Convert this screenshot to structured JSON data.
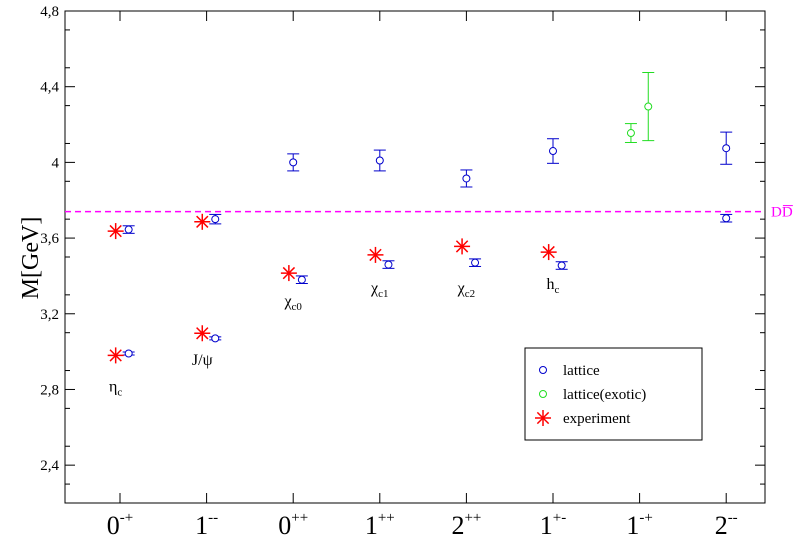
{
  "chart_data": {
    "type": "scatter",
    "ylabel": "M[GeV]",
    "ylim": [
      2.2,
      4.8
    ],
    "y_ticks": [
      2.4,
      2.8,
      3.2,
      3.6,
      4.0,
      4.4,
      4.8
    ],
    "y_tick_labels": [
      "2,4",
      "2,8",
      "3,2",
      "3,6",
      "4",
      "4,4",
      "4,8"
    ],
    "categories": [
      {
        "base": "0",
        "sup": "-+"
      },
      {
        "base": "1",
        "sup": "--"
      },
      {
        "base": "0",
        "sup": "++"
      },
      {
        "base": "1",
        "sup": "++"
      },
      {
        "base": "2",
        "sup": "++"
      },
      {
        "base": "1",
        "sup": "+-"
      },
      {
        "base": "1",
        "sup": "-+"
      },
      {
        "base": "2",
        "sup": "--"
      }
    ],
    "threshold": {
      "value": 3.74,
      "label": "DD",
      "color": "#ff00ff"
    },
    "series": [
      {
        "name": "lattice",
        "color": "#0000cc",
        "marker": "circle",
        "points": [
          {
            "cat": 0,
            "offset": 0.1,
            "y": 2.99,
            "err": 0.008
          },
          {
            "cat": 0,
            "offset": 0.1,
            "y": 3.645,
            "err": 0.02
          },
          {
            "cat": 1,
            "offset": 0.1,
            "y": 3.07,
            "err": 0.008
          },
          {
            "cat": 1,
            "offset": 0.1,
            "y": 3.7,
            "err": 0.025
          },
          {
            "cat": 2,
            "offset": 0.1,
            "y": 3.38,
            "err": 0.02
          },
          {
            "cat": 2,
            "offset": 0.0,
            "y": 4.0,
            "err": 0.045
          },
          {
            "cat": 3,
            "offset": 0.1,
            "y": 3.46,
            "err": 0.02
          },
          {
            "cat": 3,
            "offset": 0.0,
            "y": 4.01,
            "err": 0.055
          },
          {
            "cat": 4,
            "offset": 0.1,
            "y": 3.47,
            "err": 0.02
          },
          {
            "cat": 4,
            "offset": 0.0,
            "y": 3.915,
            "err": 0.045
          },
          {
            "cat": 5,
            "offset": 0.1,
            "y": 3.455,
            "err": 0.02
          },
          {
            "cat": 5,
            "offset": 0.0,
            "y": 4.06,
            "err": 0.065
          },
          {
            "cat": 7,
            "offset": 0.0,
            "y": 3.705,
            "err": 0.02
          },
          {
            "cat": 7,
            "offset": 0.0,
            "y": 4.075,
            "err": 0.085
          }
        ]
      },
      {
        "name": "lattice(exotic)",
        "color": "#22dd22",
        "marker": "circle",
        "points": [
          {
            "cat": 6,
            "offset": -0.1,
            "y": 4.155,
            "err": 0.05
          },
          {
            "cat": 6,
            "offset": 0.1,
            "y": 4.295,
            "err": 0.18
          }
        ]
      },
      {
        "name": "experiment",
        "color": "#ff0000",
        "marker": "star",
        "points": [
          {
            "cat": 0,
            "offset": -0.05,
            "y": 2.98
          },
          {
            "cat": 0,
            "offset": -0.05,
            "y": 3.637
          },
          {
            "cat": 1,
            "offset": -0.05,
            "y": 3.097
          },
          {
            "cat": 1,
            "offset": -0.05,
            "y": 3.686
          },
          {
            "cat": 2,
            "offset": -0.05,
            "y": 3.415
          },
          {
            "cat": 3,
            "offset": -0.05,
            "y": 3.511
          },
          {
            "cat": 4,
            "offset": -0.05,
            "y": 3.556
          },
          {
            "cat": 5,
            "offset": -0.05,
            "y": 3.526
          }
        ]
      }
    ],
    "annotations": [
      {
        "cat": 0,
        "offset": -0.05,
        "y": 2.79,
        "base": "η",
        "sub": "c"
      },
      {
        "cat": 1,
        "offset": -0.05,
        "y": 2.93,
        "base": "J/ψ",
        "sub": ""
      },
      {
        "cat": 2,
        "offset": 0.0,
        "y": 3.24,
        "base": "χ",
        "sub": "c0"
      },
      {
        "cat": 3,
        "offset": 0.0,
        "y": 3.31,
        "base": "χ",
        "sub": "c1"
      },
      {
        "cat": 4,
        "offset": 0.0,
        "y": 3.31,
        "base": "χ",
        "sub": "c2"
      },
      {
        "cat": 5,
        "offset": 0.0,
        "y": 3.33,
        "base": "h",
        "sub": "c"
      }
    ],
    "legend": {
      "placement": "bottom-right",
      "entries": [
        "lattice",
        "lattice(exotic)",
        "experiment"
      ]
    }
  }
}
